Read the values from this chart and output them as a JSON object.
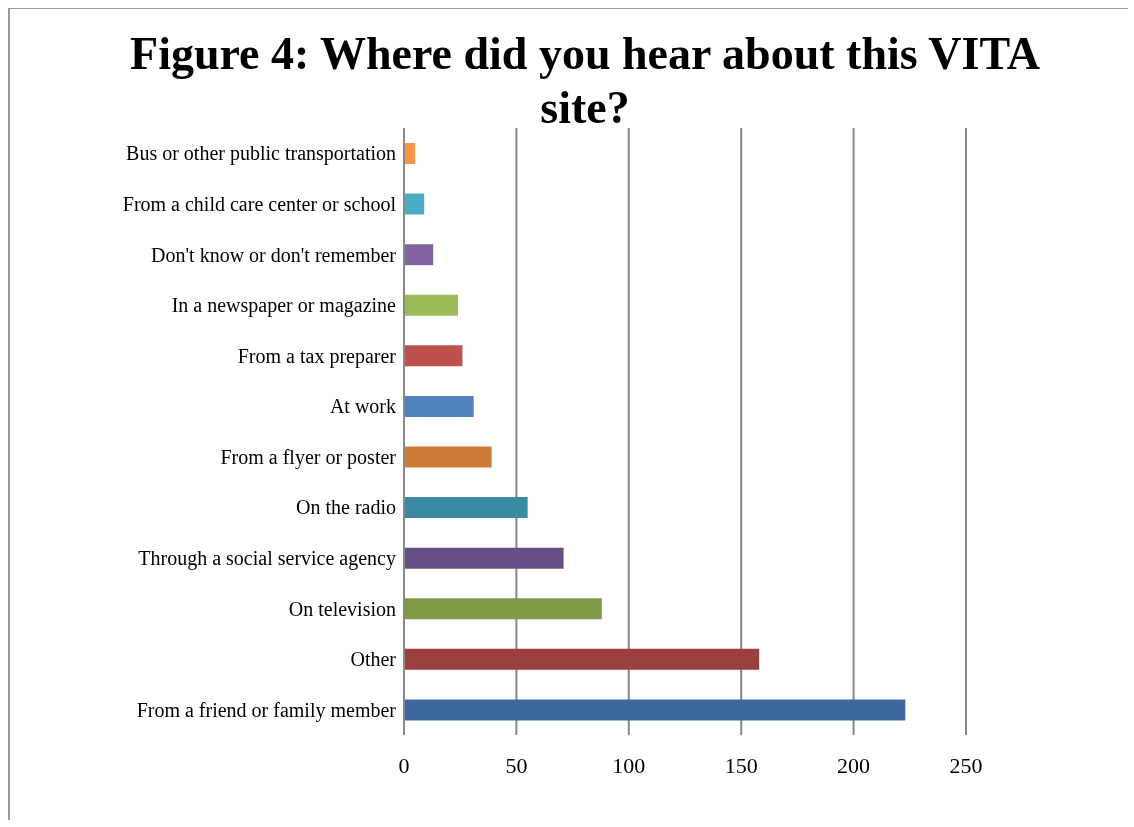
{
  "chart_data": {
    "type": "bar",
    "orientation": "horizontal",
    "title": "Figure 4: Where did you hear about this VITA site?",
    "categories": [
      "Bus or other public transportation",
      "From a child care center or school",
      "Don't know or don't remember",
      "In a newspaper or magazine",
      "From a tax preparer",
      "At work",
      "From a flyer or poster",
      "On the radio",
      "Through a social service agency",
      "On television",
      "Other",
      "From a friend or family member"
    ],
    "values": [
      5,
      9,
      13,
      24,
      26,
      31,
      39,
      55,
      71,
      88,
      158,
      223
    ],
    "colors": [
      "#f79646",
      "#4bacc6",
      "#8064a2",
      "#9bbb59",
      "#c0504d",
      "#4f81bd",
      "#cc7a36",
      "#3a8ba2",
      "#674f85",
      "#7f9a46",
      "#9c403d",
      "#3e689c"
    ],
    "xlim": [
      0,
      250
    ],
    "xticks": [
      0,
      50,
      100,
      150,
      200,
      250
    ],
    "grid": "x",
    "legend": false
  }
}
